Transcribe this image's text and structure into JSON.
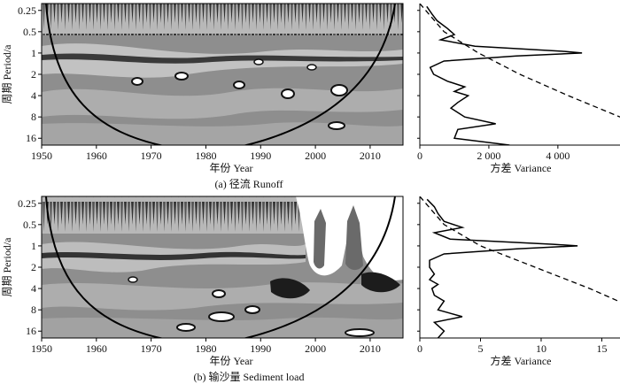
{
  "chart_data": [
    {
      "id": "a",
      "type": "heatmap",
      "caption": "(a) 径流 Runoff",
      "xlabel": "年份 Year",
      "ylabel": "周期 Period/a",
      "x_ticks": [
        1950,
        1960,
        1970,
        1980,
        1990,
        2000,
        2010
      ],
      "xlim": [
        1950,
        2016
      ],
      "y_ticks": [
        0.25,
        0.5,
        1,
        2,
        4,
        8,
        16
      ],
      "ylim": [
        0.2,
        20
      ],
      "y_scale": "log2",
      "cone_of_influence": true,
      "global_spectrum": {
        "type": "line",
        "xlabel": "方差 Variance",
        "x_ticks": [
          0,
          2000,
          4000
        ],
        "x_tick_labels": [
          "0",
          "2 000",
          "4 000"
        ],
        "xlim": [
          0,
          5800
        ],
        "periods": [
          0.22,
          0.28,
          0.35,
          0.45,
          0.55,
          0.65,
          0.8,
          0.95,
          1.0,
          1.1,
          1.3,
          1.6,
          2.0,
          2.5,
          3.0,
          3.5,
          4.0,
          5.0,
          6.0,
          8.0,
          10.0,
          12.0,
          16.0,
          20.0
        ],
        "variance": [
          200,
          350,
          500,
          800,
          1000,
          600,
          1600,
          4200,
          4700,
          2800,
          700,
          300,
          400,
          800,
          1300,
          1000,
          1400,
          1100,
          900,
          1300,
          2200,
          1100,
          1000,
          2600
        ],
        "significance": {
          "periods": [
            0.2,
            0.5,
            1,
            2,
            4,
            8,
            16,
            20
          ],
          "variance": [
            0,
            700,
            1700,
            2900,
            4300,
            5800,
            7200,
            7600
          ]
        }
      }
    },
    {
      "id": "b",
      "type": "heatmap",
      "caption": "(b) 输沙量 Sediment load",
      "xlabel": "年份 Year",
      "ylabel": "周期 Period/a",
      "x_ticks": [
        1950,
        1960,
        1970,
        1980,
        1990,
        2000,
        2010
      ],
      "xlim": [
        1950,
        2016
      ],
      "y_ticks": [
        0.25,
        0.5,
        1,
        2,
        4,
        8,
        16
      ],
      "ylim": [
        0.2,
        20
      ],
      "y_scale": "log2",
      "cone_of_influence": true,
      "global_spectrum": {
        "type": "line",
        "xlabel": "方差 Variance",
        "x_ticks": [
          0,
          5,
          10,
          15
        ],
        "x_tick_labels": [
          "0",
          "5",
          "10",
          "15"
        ],
        "xlim": [
          0,
          16.5
        ],
        "periods": [
          0.22,
          0.28,
          0.35,
          0.45,
          0.55,
          0.65,
          0.8,
          0.95,
          1.0,
          1.1,
          1.3,
          1.6,
          2.0,
          2.5,
          3.0,
          3.5,
          4.0,
          5.0,
          6.0,
          8.0,
          10.0,
          12.0,
          16.0,
          20.0
        ],
        "variance": [
          0.6,
          1.2,
          1.5,
          2.0,
          3.5,
          1.2,
          2.5,
          11.0,
          13.0,
          8.0,
          2.0,
          0.8,
          0.8,
          1.2,
          0.8,
          1.5,
          1.0,
          1.2,
          2.0,
          1.5,
          3.5,
          1.2,
          2.0,
          1.5
        ],
        "significance": {
          "periods": [
            0.2,
            0.5,
            1,
            2,
            4,
            8,
            16,
            20
          ],
          "variance": [
            0,
            2.0,
            5.0,
            9.5,
            14.0,
            18.0,
            21.0,
            22.0
          ]
        }
      }
    }
  ]
}
